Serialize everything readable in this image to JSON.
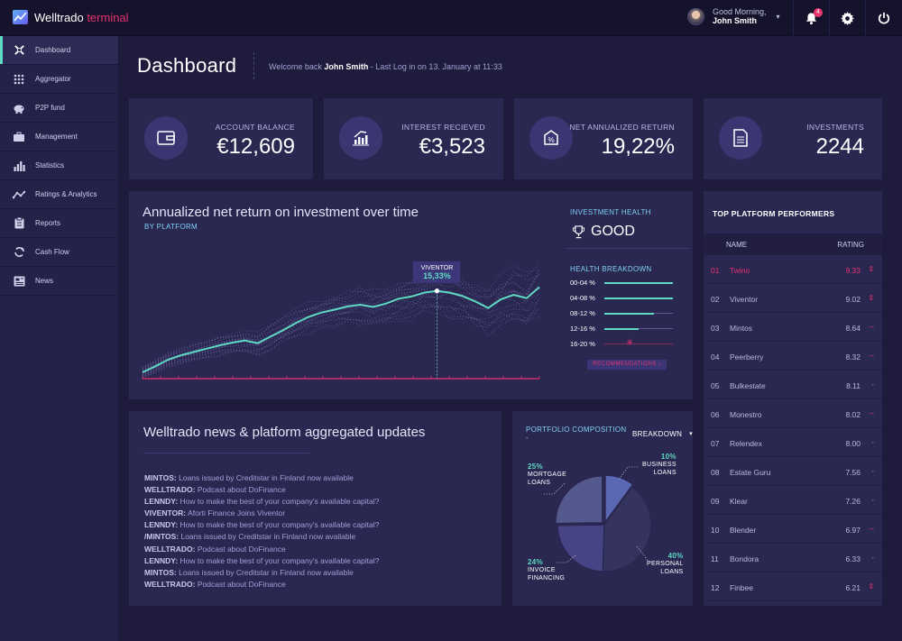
{
  "app": {
    "name": "Welltrado",
    "name_accent": "terminal"
  },
  "user": {
    "greeting": "Good Morning,",
    "name": "John Smith",
    "notifications": "4"
  },
  "colors": {
    "accent": "#5fd9c2",
    "brand": "#e8336e",
    "highlight": "#7ed0f1"
  },
  "sidebar": {
    "items": [
      {
        "label": "Dashboard",
        "icon": "dashboard-icon",
        "active": true
      },
      {
        "label": "Aggregator",
        "icon": "grid-icon"
      },
      {
        "label": "P2P fund",
        "icon": "piggy-bank-icon"
      },
      {
        "label": "Management",
        "icon": "briefcase-icon"
      },
      {
        "label": "Statistics",
        "icon": "bar-chart-icon"
      },
      {
        "label": "Ratings & Analytics",
        "icon": "analytics-icon"
      },
      {
        "label": "Reports",
        "icon": "clipboard-icon"
      },
      {
        "label": "Cash Flow",
        "icon": "cycle-icon"
      },
      {
        "label": "News",
        "icon": "newspaper-icon"
      }
    ]
  },
  "page": {
    "title": "Dashboard",
    "welcome_prefix": "Welcome back",
    "welcome_name": "John Smith",
    "welcome_suffix": "- Last Log in on 13. January at 11:33"
  },
  "stats": [
    {
      "label": "ACCOUNT BALANCE",
      "value": "€12,609",
      "icon": "wallet-icon"
    },
    {
      "label": "INTEREST RECIEVED",
      "value": "€3,523",
      "icon": "growth-icon"
    },
    {
      "label": "NET ANNUALIZED RETURN",
      "value": "19,22%",
      "icon": "percent-icon"
    },
    {
      "label": "INVESTMENTS",
      "value": "2244",
      "icon": "document-icon"
    }
  ],
  "chart_data": {
    "type": "line",
    "title": "Annualized net return on investment over time",
    "subtitle": "BY PLATFORM",
    "highlight_series": "VIVENTOR",
    "highlight_value": "15,33%",
    "values": [
      0.5,
      1.6,
      2.8,
      3.6,
      4.2,
      4.8,
      5.4,
      5.9,
      6.3,
      5.8,
      7.0,
      8.2,
      9.5,
      10.6,
      11.4,
      11.9,
      12.5,
      12.8,
      12.4,
      13.0,
      13.9,
      14.3,
      15.0,
      15.33,
      15.0,
      14.4,
      13.4,
      12.2,
      13.8,
      14.6,
      14.0,
      16.0
    ],
    "ylim": [
      0,
      22
    ]
  },
  "health": {
    "label": "INVESTMENT HEALTH",
    "value": "GOOD",
    "breakdown_label": "HEALTH BREAKDOWN",
    "rows": [
      {
        "range": "00-04 %",
        "fill": 1.0,
        "flag": false
      },
      {
        "range": "04-08 %",
        "fill": 1.0,
        "flag": false
      },
      {
        "range": "08-12 %",
        "fill": 0.72,
        "flag": false
      },
      {
        "range": "12-16 %",
        "fill": 0.5,
        "flag": false
      },
      {
        "range": "16-20 %",
        "fill": 0.0,
        "flag": true
      }
    ],
    "recommendations": "RECOMMENDATIONS ›"
  },
  "news": {
    "title": "Welltrado news  & platform aggregated updates",
    "items": [
      {
        "source": "MINTOS:",
        "text": "Loans issued by Creditstar in Finland now available"
      },
      {
        "source": "WELLTRADO:",
        "text": "Podcast about DoFinance"
      },
      {
        "source": "LENNDY:",
        "text": "How to make the best of your company's available capital?"
      },
      {
        "source": "VIVENTOR:",
        "text": "Aforti Finance Joins Viventor"
      },
      {
        "source": "LENNDY:",
        "text": "How to make the best of your company's available capital?"
      },
      {
        "source": "/MINTOS:",
        "text": "Loans issued by Creditstar in Finland now available"
      },
      {
        "source": "WELLTRADO:",
        "text": "Podcast about DoFinance"
      },
      {
        "source": "LENNDY:",
        "text": "How to make the best of your company's available capital?"
      },
      {
        "source": "MINTOS:",
        "text": "Loans issued by Creditstar in Finland now available"
      },
      {
        "source": "WELLTRADO:",
        "text": "Podcast about DoFinance"
      }
    ]
  },
  "composition": {
    "title": "PORTFOLIO COMPOSITION -",
    "title_bold": "BREAKDOWN",
    "slices": [
      {
        "label": "MORTGAGE LOANS",
        "line1": "MORTGAGE",
        "line2": "LOANS",
        "pct": "25%",
        "value": 25,
        "color": "#54598d"
      },
      {
        "label": "BUSINESS LOANS",
        "line1": "BUSINESS",
        "line2": "LOANS",
        "pct": "10%",
        "value": 10,
        "color": "#5a68b4"
      },
      {
        "label": "PERSONAL LOANS",
        "line1": "PERSONAL",
        "line2": "LOANS",
        "pct": "40%",
        "value": 40,
        "color": "#35345f"
      },
      {
        "label": "INVOICE FINANCING",
        "line1": "INVOICE",
        "line2": "FINANCING",
        "pct": "24%",
        "value": 24,
        "color": "#474486"
      }
    ]
  },
  "performers": {
    "title": "TOP PLATFORM PERFORMERS",
    "col_name": "NAME",
    "col_rating": "RATING",
    "rows": [
      {
        "idx": "01",
        "name": "Twino",
        "rating": "9.33",
        "trend": "up"
      },
      {
        "idx": "02",
        "name": "Viventor",
        "rating": "9.02",
        "trend": "up"
      },
      {
        "idx": "03",
        "name": "Mintos",
        "rating": "8.64",
        "trend": "down"
      },
      {
        "idx": "04",
        "name": "Peerberry",
        "rating": "8.32",
        "trend": "down"
      },
      {
        "idx": "05",
        "name": "Bulkestate",
        "rating": "8.11",
        "trend": "flat"
      },
      {
        "idx": "06",
        "name": "Monestro",
        "rating": "8.02",
        "trend": "down"
      },
      {
        "idx": "07",
        "name": "Relendex",
        "rating": "8.00",
        "trend": "flat"
      },
      {
        "idx": "08",
        "name": "Estate Guru",
        "rating": "7.56",
        "trend": "flat"
      },
      {
        "idx": "09",
        "name": "Klear",
        "rating": "7.26",
        "trend": "flat"
      },
      {
        "idx": "10",
        "name": "Blender",
        "rating": "6.97",
        "trend": "down"
      },
      {
        "idx": "11",
        "name": "Bondora",
        "rating": "6.33",
        "trend": "flat"
      },
      {
        "idx": "12",
        "name": "Finbee",
        "rating": "6.21",
        "trend": "up"
      }
    ]
  }
}
